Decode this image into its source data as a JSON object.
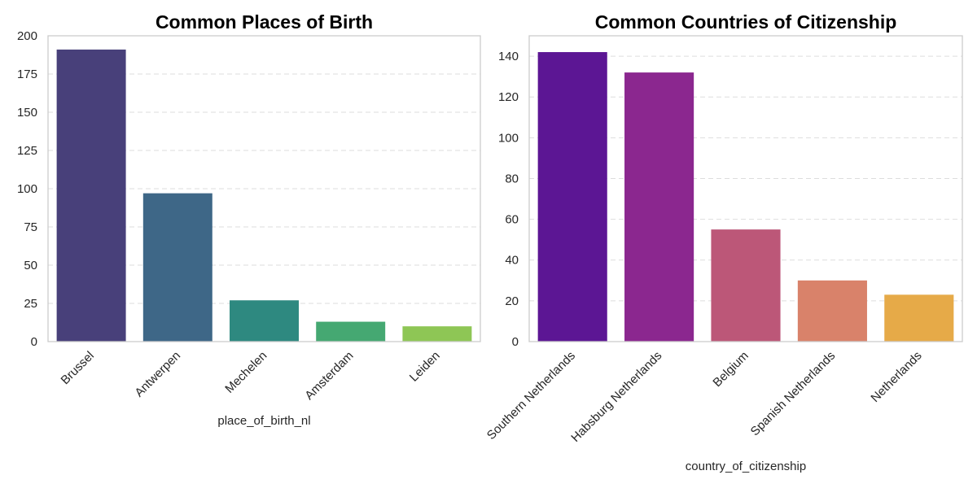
{
  "chart_data": [
    {
      "type": "bar",
      "title": "Common Places of Birth",
      "xlabel": "place_of_birth_nl",
      "ylabel": "",
      "categories": [
        "Brussel",
        "Antwerpen",
        "Mechelen",
        "Amsterdam",
        "Leiden"
      ],
      "values": [
        191,
        97,
        27,
        13,
        10
      ],
      "colors": [
        "#48407a",
        "#3e6787",
        "#2e8980",
        "#45a872",
        "#8ec655"
      ],
      "ylim": [
        0,
        200
      ],
      "yticks": [
        0,
        25,
        50,
        75,
        100,
        125,
        150,
        175,
        200
      ],
      "grid": "y-dashed",
      "legend": "none"
    },
    {
      "type": "bar",
      "title": "Common Countries of Citizenship",
      "xlabel": "country_of_citizenship",
      "ylabel": "",
      "categories": [
        "Southern Netherlands",
        "Habsburg Netherlands",
        "Belgium",
        "Spanish Netherlands",
        "Netherlands"
      ],
      "values": [
        142,
        132,
        55,
        30,
        23
      ],
      "colors": [
        "#5c1694",
        "#8b278f",
        "#bc5778",
        "#d9826a",
        "#e6aa48"
      ],
      "ylim": [
        0,
        150
      ],
      "yticks": [
        0,
        20,
        40,
        60,
        80,
        100,
        120,
        140
      ],
      "grid": "y-dashed",
      "legend": "none"
    }
  ]
}
